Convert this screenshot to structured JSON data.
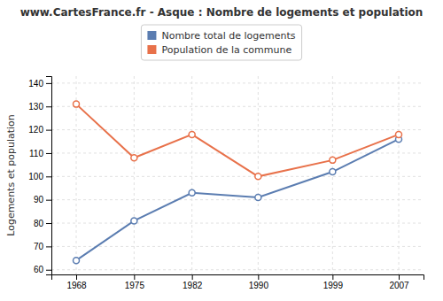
{
  "chart_data": {
    "type": "line",
    "title": "www.CartesFrance.fr - Asque : Nombre de logements et population",
    "ylabel": "Logements et population",
    "x": [
      1968,
      1975,
      1982,
      1990,
      1999,
      2007
    ],
    "xlim": [
      1965,
      2010
    ],
    "xticks": [
      1968,
      1975,
      1982,
      1990,
      1999,
      2007
    ],
    "ylim": [
      58,
      143
    ],
    "yticks": [
      60,
      70,
      80,
      90,
      100,
      110,
      120,
      130,
      140
    ],
    "grid": true,
    "legend": "top",
    "series": [
      {
        "name": "Nombre total de logements",
        "color": "#5b7db1",
        "marker": "circle",
        "values": [
          64,
          81,
          93,
          91,
          102,
          116
        ]
      },
      {
        "name": "Population de la commune",
        "color": "#e8714a",
        "marker": "circle",
        "values": [
          131,
          108,
          118,
          100,
          107,
          118
        ]
      }
    ]
  }
}
